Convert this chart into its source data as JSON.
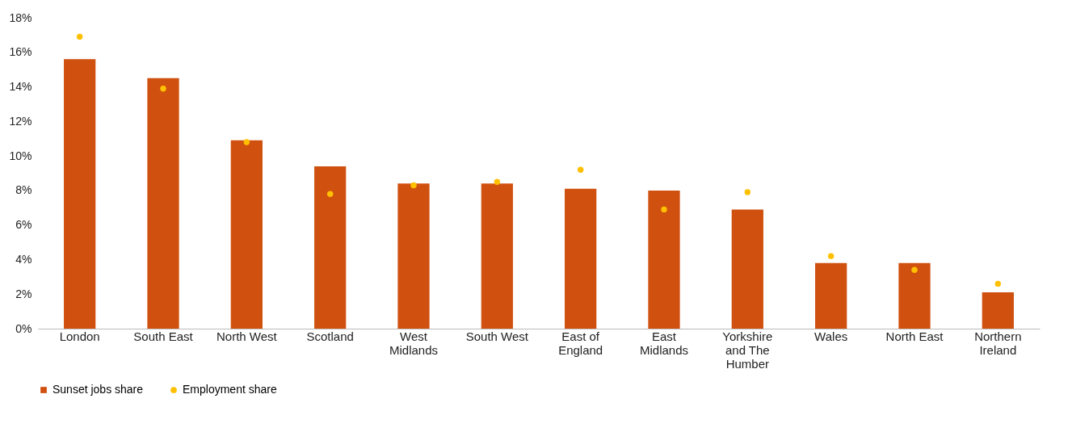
{
  "chart_data": {
    "type": "bar",
    "categories": [
      "London",
      "South East",
      "North West",
      "Scotland",
      "West Midlands",
      "South West",
      "East of England",
      "East Midlands",
      "Yorkshire and The Humber",
      "Wales",
      "North East",
      "Northern Ireland"
    ],
    "series": [
      {
        "name": "Sunset jobs share",
        "color": "#d0510f",
        "values": [
          15.6,
          14.5,
          10.9,
          9.4,
          8.4,
          8.4,
          8.1,
          8.0,
          6.9,
          3.8,
          3.8,
          2.1
        ]
      },
      {
        "name": "Employment share",
        "type": "scatter",
        "color": "#ffc000",
        "values": [
          16.9,
          13.9,
          10.8,
          7.8,
          8.3,
          8.5,
          9.2,
          6.9,
          7.9,
          4.2,
          3.4,
          2.6
        ]
      }
    ],
    "ylim": [
      0,
      18
    ],
    "yticks": [
      {
        "value": 0,
        "label": "0%"
      },
      {
        "value": 2,
        "label": "2%"
      },
      {
        "value": 4,
        "label": "4%"
      },
      {
        "value": 6,
        "label": "6%"
      },
      {
        "value": 8,
        "label": "8%"
      },
      {
        "value": 10,
        "label": "10%"
      },
      {
        "value": 12,
        "label": "12%"
      },
      {
        "value": 14,
        "label": "14%"
      },
      {
        "value": 16,
        "label": "16%"
      },
      {
        "value": 18,
        "label": "18%"
      }
    ],
    "grid": false,
    "legend": "bottom",
    "marker": "circle"
  }
}
